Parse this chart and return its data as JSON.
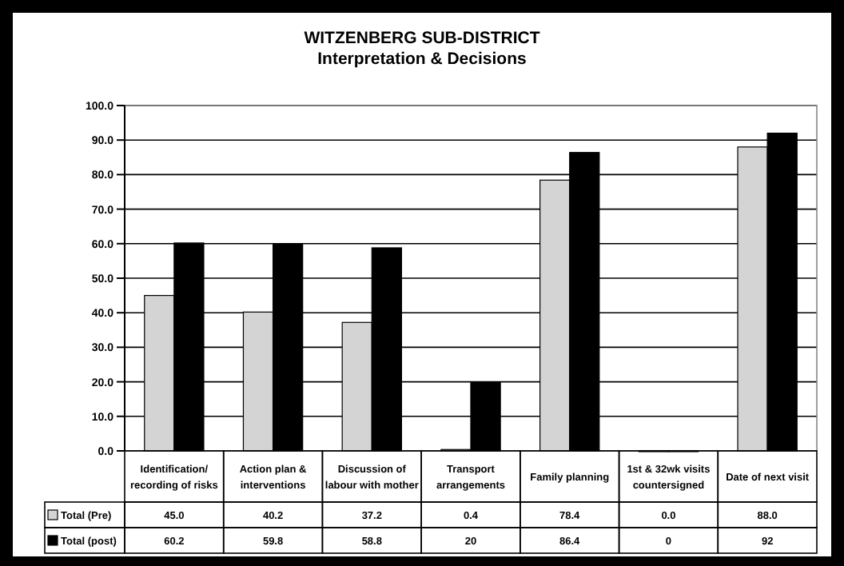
{
  "chart_data": {
    "type": "bar",
    "title": "WITZENBERG SUB-DISTRICT",
    "subtitle": "Interpretation & Decisions",
    "categories": [
      "Identification/ recording of risks",
      "Action plan & interventions",
      "Discussion of labour with mother",
      "Transport arrangements",
      "Family planning",
      "1st & 32wk visits countersigned",
      "Date of next visit"
    ],
    "series": [
      {
        "name": "Total (Pre)",
        "color": "#d4d4d4",
        "values": [
          45.0,
          40.2,
          37.2,
          0.4,
          78.4,
          0.0,
          88.0
        ],
        "value_labels": [
          "45.0",
          "40.2",
          "37.2",
          "0.4",
          "78.4",
          "0.0",
          "88.0"
        ]
      },
      {
        "name": "Total (post)",
        "color": "#000000",
        "values": [
          60.2,
          59.8,
          58.8,
          20,
          86.4,
          0,
          92
        ],
        "value_labels": [
          "60.2",
          "59.8",
          "58.8",
          "20",
          "86.4",
          "0",
          "92"
        ]
      }
    ],
    "ylim": [
      0,
      100
    ],
    "yticks": [
      {
        "value": 0,
        "label": "0.0"
      },
      {
        "value": 10,
        "label": "10.0"
      },
      {
        "value": 20,
        "label": "20.0"
      },
      {
        "value": 30,
        "label": "30.0"
      },
      {
        "value": 40,
        "label": "40.0"
      },
      {
        "value": 50,
        "label": "50.0"
      },
      {
        "value": 60,
        "label": "60.0"
      },
      {
        "value": 70,
        "label": "70.0"
      },
      {
        "value": 80,
        "label": "80.0"
      },
      {
        "value": 90,
        "label": "90.0"
      },
      {
        "value": 100,
        "label": "100.0"
      }
    ],
    "grid": "y",
    "legend": "bottom",
    "data_labels": true
  }
}
